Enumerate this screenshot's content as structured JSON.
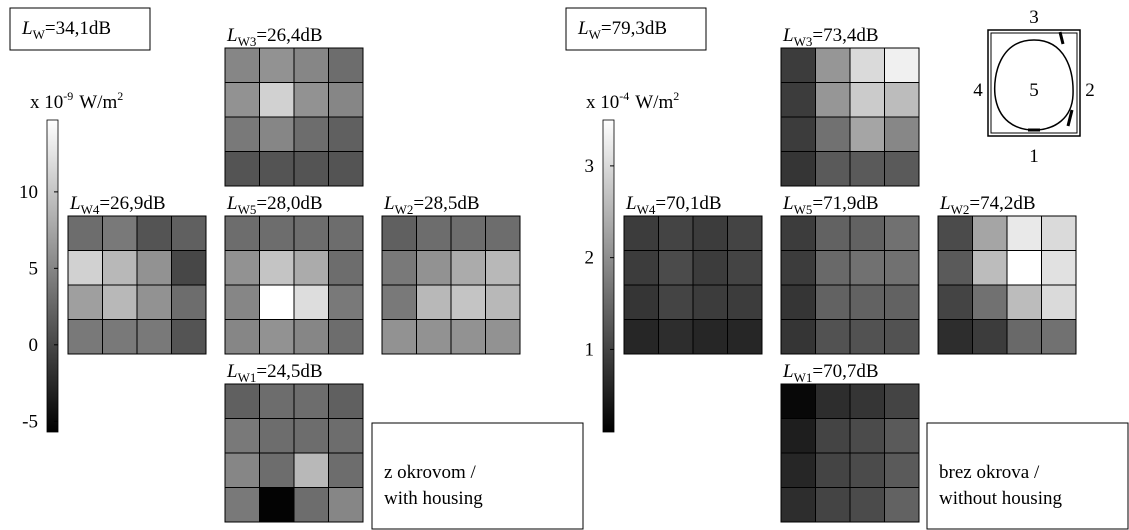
{
  "groups": [
    {
      "total": {
        "symbol": "L",
        "subscript": "W",
        "value": "=34,1dB"
      },
      "unit": {
        "prefix": "x 10",
        "exponent": "-9",
        "unit": "W/m",
        "power": "2"
      },
      "colorbar": {
        "lim": [
          -5.7,
          14.7
        ],
        "ticks": [
          -5,
          0,
          5,
          10
        ]
      },
      "panels": [
        {
          "symbol": "L",
          "subscript": "W3",
          "value": "=26,4dB",
          "cells": [
            [
              5,
              6,
              5,
              3
            ],
            [
              6,
              11,
              6,
              5
            ],
            [
              4,
              5,
              3,
              2
            ],
            [
              1,
              1,
              1,
              1
            ]
          ]
        },
        {
          "symbol": "L",
          "subscript": "W4",
          "value": "=26,9dB",
          "cells": [
            [
              3,
              4,
              1,
              2
            ],
            [
              11,
              9,
              6,
              0
            ],
            [
              7,
              9,
              6,
              3
            ],
            [
              4,
              4,
              4,
              1
            ]
          ]
        },
        {
          "symbol": "L",
          "subscript": "W5",
          "value": "=28,0dB",
          "cells": [
            [
              3,
              3,
              3,
              3
            ],
            [
              6,
              10,
              8,
              3
            ],
            [
              5,
              14.7,
              12,
              4
            ],
            [
              5,
              6,
              5,
              3
            ]
          ]
        },
        {
          "symbol": "L",
          "subscript": "W2",
          "value": "=28,5dB",
          "cells": [
            [
              2,
              3,
              3,
              3
            ],
            [
              4,
              6,
              8,
              9
            ],
            [
              4,
              9,
              10,
              9
            ],
            [
              6,
              6,
              6,
              6
            ]
          ]
        },
        {
          "symbol": "L",
          "subscript": "W1",
          "value": "=24,5dB",
          "cells": [
            [
              2,
              3,
              3,
              2
            ],
            [
              4,
              3,
              3,
              3
            ],
            [
              5,
              3,
              9,
              3
            ],
            [
              4,
              -5.5,
              3,
              5
            ]
          ]
        }
      ],
      "caption": [
        "z okrovom /",
        "with housing"
      ]
    },
    {
      "total": {
        "symbol": "L",
        "subscript": "W",
        "value": "=79,3dB"
      },
      "unit": {
        "prefix": "x 10",
        "exponent": "-4",
        "unit": "W/m",
        "power": "2"
      },
      "colorbar": {
        "lim": [
          0.1,
          3.5
        ],
        "ticks": [
          1,
          2,
          3
        ]
      },
      "panels": [
        {
          "symbol": "L",
          "subscript": "W3",
          "value": "=73,4dB",
          "cells": [
            [
              0.9,
              2.1,
              3.0,
              3.3
            ],
            [
              0.9,
              2.1,
              2.8,
              2.6
            ],
            [
              0.9,
              1.6,
              2.3,
              1.9
            ],
            [
              0.8,
              1.3,
              1.3,
              1.3
            ]
          ]
        },
        {
          "symbol": "L",
          "subscript": "W4",
          "value": "=70,1dB",
          "cells": [
            [
              0.9,
              1.0,
              0.9,
              1.0
            ],
            [
              0.9,
              1.1,
              0.9,
              1.0
            ],
            [
              0.8,
              1.0,
              0.9,
              0.9
            ],
            [
              0.6,
              0.7,
              0.6,
              0.6
            ]
          ]
        },
        {
          "symbol": "L",
          "subscript": "W5",
          "value": "=71,9dB",
          "cells": [
            [
              0.9,
              1.4,
              1.4,
              1.6
            ],
            [
              0.9,
              1.5,
              1.6,
              1.6
            ],
            [
              0.8,
              1.4,
              1.4,
              1.4
            ],
            [
              0.8,
              1.2,
              1.2,
              1.2
            ]
          ]
        },
        {
          "symbol": "L",
          "subscript": "W2",
          "value": "=74,2dB",
          "cells": [
            [
              1.1,
              2.3,
              3.2,
              3.0
            ],
            [
              1.3,
              2.6,
              3.5,
              3.1
            ],
            [
              1.0,
              1.6,
              2.6,
              3.0
            ],
            [
              0.7,
              0.9,
              1.5,
              1.6
            ]
          ]
        },
        {
          "symbol": "L",
          "subscript": "W1",
          "value": "=70,7dB",
          "cells": [
            [
              0.2,
              0.7,
              0.8,
              1.0
            ],
            [
              0.5,
              1.0,
              1.1,
              1.3
            ],
            [
              0.6,
              1.0,
              1.1,
              1.3
            ],
            [
              0.7,
              1.0,
              1.1,
              1.4
            ]
          ]
        }
      ],
      "caption": [
        "brez okrova /",
        "without housing"
      ]
    }
  ],
  "housing_diagram": {
    "labels": [
      "3",
      "4",
      "5",
      "2",
      "1"
    ]
  }
}
